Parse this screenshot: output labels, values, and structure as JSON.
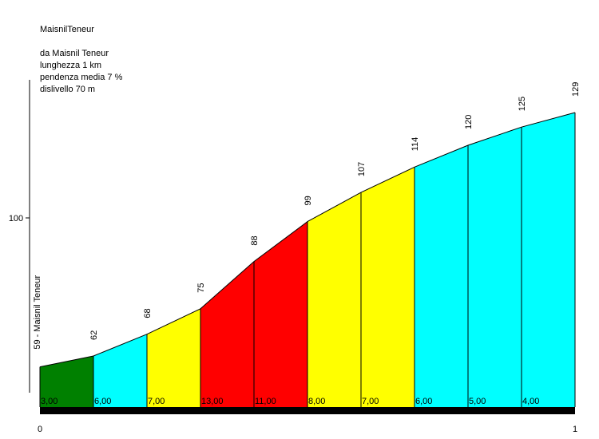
{
  "header": {
    "climb_name": "MaisnilTeneur",
    "from": "da Maisnil Teneur",
    "length": "lunghezza 1 km",
    "avg_gradient": "pendenza media 7 %",
    "elevation_gain": "dislivello 70 m"
  },
  "chart_data": {
    "type": "area",
    "title": "",
    "xlabel": "",
    "ylabel": "",
    "x_ticks": [
      "0",
      "1"
    ],
    "y_ticks": [
      100
    ],
    "start_label": "59 - Maisnil Teneur",
    "elevations": [
      59,
      62,
      68,
      75,
      88,
      99,
      107,
      114,
      120,
      125,
      129
    ],
    "elevation_labels": [
      "62",
      "68",
      "75",
      "88",
      "99",
      "107",
      "114",
      "120",
      "125",
      "129"
    ],
    "gradients": [
      "3,00",
      "6,00",
      "7,00",
      "13,00",
      "11,00",
      "8,00",
      "7,00",
      "6,00",
      "5,00",
      "4,00"
    ],
    "segment_colors": [
      "#008000",
      "#00ffff",
      "#ffff00",
      "#ff0000",
      "#ff0000",
      "#ffff00",
      "#ffff00",
      "#00ffff",
      "#00ffff",
      "#00ffff"
    ],
    "xlim": [
      0,
      1
    ],
    "ylim": [
      47.5,
      130
    ]
  }
}
